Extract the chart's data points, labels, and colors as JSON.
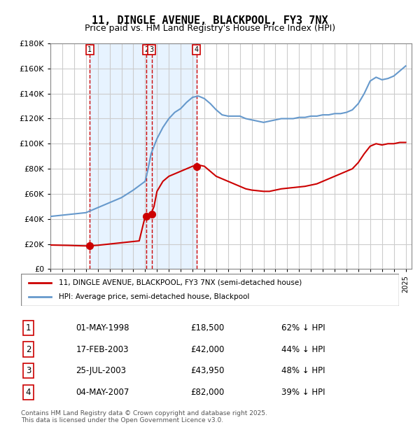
{
  "title": "11, DINGLE AVENUE, BLACKPOOL, FY3 7NX",
  "subtitle": "Price paid vs. HM Land Registry's House Price Index (HPI)",
  "legend_line1": "11, DINGLE AVENUE, BLACKPOOL, FY3 7NX (semi-detached house)",
  "legend_line2": "HPI: Average price, semi-detached house, Blackpool",
  "footer": "Contains HM Land Registry data © Crown copyright and database right 2025.\nThis data is licensed under the Open Government Licence v3.0.",
  "sales": [
    {
      "num": 1,
      "date": "1998-05-01",
      "price": 18500,
      "pct": "62% ↓ HPI"
    },
    {
      "num": 2,
      "date": "2003-02-17",
      "price": 42000,
      "pct": "44% ↓ HPI"
    },
    {
      "num": 3,
      "date": "2003-07-25",
      "price": 43950,
      "pct": "48% ↓ HPI"
    },
    {
      "num": 4,
      "date": "2007-05-04",
      "price": 82000,
      "pct": "39% ↓ HPI"
    }
  ],
  "sale_labels": [
    "01-MAY-1998",
    "17-FEB-2003",
    "25-JUL-2003",
    "04-MAY-2007"
  ],
  "sale_prices_str": [
    "£18,500",
    "£42,000",
    "£43,950",
    "£82,000"
  ],
  "red_color": "#cc0000",
  "blue_color": "#6699cc",
  "bg_shade_color": "#ddeeff",
  "grid_color": "#cccccc",
  "ylim": [
    0,
    180000
  ],
  "yticks": [
    0,
    20000,
    40000,
    60000,
    80000,
    100000,
    120000,
    140000,
    160000,
    180000
  ],
  "hpi_years": [
    1995,
    1996,
    1997,
    1998,
    1999,
    2000,
    2001,
    2002,
    2003,
    2004,
    2005,
    2006,
    2007,
    2008,
    2009,
    2010,
    2011,
    2012,
    2013,
    2014,
    2015,
    2016,
    2017,
    2018,
    2019,
    2020,
    2021,
    2022,
    2023,
    2024,
    2025
  ],
  "hpi_values": [
    42000,
    43500,
    44000,
    46000,
    49000,
    53000,
    57000,
    63000,
    70000,
    100000,
    120000,
    130000,
    138000,
    135000,
    125000,
    128000,
    123000,
    118000,
    118000,
    120000,
    120000,
    121000,
    122000,
    123000,
    124000,
    126000,
    138000,
    155000,
    150000,
    155000,
    165000
  ],
  "red_years": [
    1995,
    1996,
    1997,
    1998,
    1999,
    2000,
    2001,
    2002,
    2003,
    2004,
    2005,
    2006,
    2007,
    2008,
    2009,
    2010,
    2011,
    2012,
    2013,
    2014,
    2015,
    2016,
    2017,
    2018,
    2019,
    2020,
    2021,
    2022,
    2023,
    2024,
    2025
  ],
  "red_values": [
    19000,
    18800,
    18700,
    18500,
    18800,
    19500,
    20500,
    22000,
    43000,
    60000,
    73000,
    78000,
    82000,
    83000,
    74000,
    70000,
    65000,
    62000,
    62000,
    63000,
    64000,
    65000,
    67000,
    70000,
    74000,
    78000,
    88000,
    100000,
    98000,
    100000,
    100000
  ]
}
